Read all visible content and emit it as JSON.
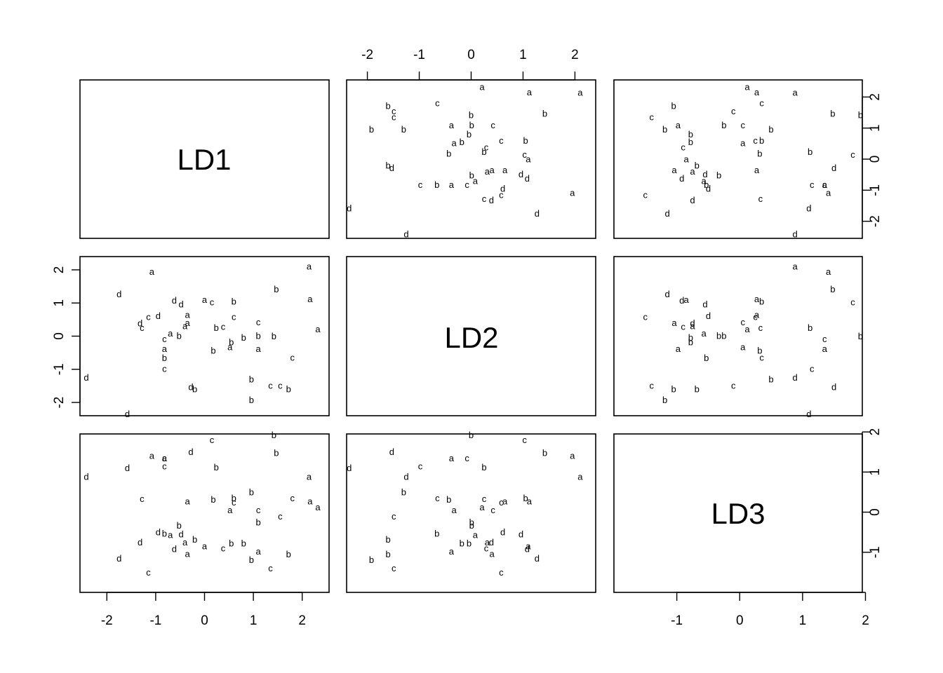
{
  "chart_data": {
    "type": "scatter",
    "plot_kind": "scatterplot matrix (pairs plot)",
    "variables": [
      "LD1",
      "LD2",
      "LD3"
    ],
    "point_labels": [
      "a",
      "b",
      "c",
      "d"
    ],
    "axes": {
      "LD1": {
        "range": [
          -2.55,
          2.55
        ],
        "ticks": [
          -2,
          -1,
          0,
          1,
          2
        ],
        "tick_labels": [
          "-2",
          "-1",
          "0",
          "1",
          "2"
        ]
      },
      "LD2": {
        "range": [
          -2.4,
          2.4
        ],
        "ticks": [
          -2,
          -1,
          0,
          1,
          2
        ],
        "tick_labels": [
          "-2",
          "-1",
          "0",
          "1",
          "2"
        ]
      },
      "LD3": {
        "range": [
          -2.0,
          1.95
        ],
        "ticks": [
          -1,
          0,
          1,
          2
        ],
        "tick_labels": [
          "-1",
          "0",
          "1",
          "2"
        ]
      }
    },
    "grid": false,
    "legend": "none",
    "points": [
      {
        "label": "a",
        "LD1": 2.32,
        "LD2": 0.21,
        "LD3": 0.12
      },
      {
        "label": "a",
        "LD1": 2.14,
        "LD2": 2.1,
        "LD3": 0.88
      },
      {
        "label": "a",
        "LD1": 2.16,
        "LD2": 1.12,
        "LD3": 0.27
      },
      {
        "label": "a",
        "LD1": -1.08,
        "LD2": 1.95,
        "LD3": 1.41
      },
      {
        "label": "a",
        "LD1": -0.82,
        "LD2": -0.38,
        "LD3": 1.35
      },
      {
        "label": "a",
        "LD1": -0.7,
        "LD2": 0.08,
        "LD3": -0.57
      },
      {
        "label": "a",
        "LD1": -0.4,
        "LD2": 0.31,
        "LD3": -0.75
      },
      {
        "label": "a",
        "LD1": -0.35,
        "LD2": 0.65,
        "LD3": 0.27
      },
      {
        "label": "a",
        "LD1": -0.35,
        "LD2": 0.4,
        "LD3": -1.04
      },
      {
        "label": "a",
        "LD1": 0.0,
        "LD2": 1.1,
        "LD3": -0.85
      },
      {
        "label": "a",
        "LD1": 0.52,
        "LD2": -0.33,
        "LD3": 0.05
      },
      {
        "label": "a",
        "LD1": 1.1,
        "LD2": -0.38,
        "LD3": -0.98
      },
      {
        "label": "b",
        "LD1": -0.82,
        "LD2": -0.66,
        "LD3": -0.53
      },
      {
        "label": "b",
        "LD1": -0.52,
        "LD2": 0.01,
        "LD3": -0.33
      },
      {
        "label": "b",
        "LD1": -0.2,
        "LD2": -1.6,
        "LD3": -0.68
      },
      {
        "label": "b",
        "LD1": 0.18,
        "LD2": -0.43,
        "LD3": 0.32
      },
      {
        "label": "b",
        "LD1": 0.24,
        "LD2": 0.25,
        "LD3": 1.12
      },
      {
        "label": "b",
        "LD1": 0.6,
        "LD2": 1.05,
        "LD3": 0.35
      },
      {
        "label": "b",
        "LD1": 0.8,
        "LD2": -0.04,
        "LD3": -0.78
      },
      {
        "label": "b",
        "LD1": 0.96,
        "LD2": -1.3,
        "LD3": 0.5
      },
      {
        "label": "b",
        "LD1": 0.96,
        "LD2": -1.92,
        "LD3": -1.19
      },
      {
        "label": "b",
        "LD1": 1.1,
        "LD2": 0.01,
        "LD3": -0.25
      },
      {
        "label": "b",
        "LD1": 1.42,
        "LD2": 0.0,
        "LD3": 1.92
      },
      {
        "label": "b",
        "LD1": 1.47,
        "LD2": 1.42,
        "LD3": 1.48
      },
      {
        "label": "b",
        "LD1": 1.72,
        "LD2": -1.6,
        "LD3": -1.05
      },
      {
        "label": "b",
        "LD1": 0.55,
        "LD2": -0.18,
        "LD3": -0.78
      },
      {
        "label": "c",
        "LD1": -1.28,
        "LD2": 0.25,
        "LD3": 0.33
      },
      {
        "label": "c",
        "LD1": -1.15,
        "LD2": 0.58,
        "LD3": -1.5
      },
      {
        "label": "c",
        "LD1": -0.82,
        "LD2": -0.98,
        "LD3": 1.15
      },
      {
        "label": "c",
        "LD1": -0.82,
        "LD2": -0.08,
        "LD3": 1.35
      },
      {
        "label": "c",
        "LD1": 0.15,
        "LD2": 1.03,
        "LD3": 1.8
      },
      {
        "label": "c",
        "LD1": 0.38,
        "LD2": 0.29,
        "LD3": -0.9
      },
      {
        "label": "c",
        "LD1": 0.6,
        "LD2": 0.58,
        "LD3": 0.25
      },
      {
        "label": "c",
        "LD1": 1.1,
        "LD2": 0.42,
        "LD3": 0.05
      },
      {
        "label": "c",
        "LD1": 1.35,
        "LD2": -1.49,
        "LD3": -1.4
      },
      {
        "label": "c",
        "LD1": 1.55,
        "LD2": -1.49,
        "LD3": -0.1
      },
      {
        "label": "c",
        "LD1": 1.8,
        "LD2": -0.65,
        "LD3": 0.35
      },
      {
        "label": "d",
        "LD1": -2.42,
        "LD2": -1.25,
        "LD3": 0.88
      },
      {
        "label": "d",
        "LD1": -1.75,
        "LD2": 1.27,
        "LD3": -1.15
      },
      {
        "label": "d",
        "LD1": -1.58,
        "LD2": -2.35,
        "LD3": 1.1
      },
      {
        "label": "d",
        "LD1": -1.32,
        "LD2": 0.39,
        "LD3": -0.75
      },
      {
        "label": "d",
        "LD1": -0.95,
        "LD2": 0.61,
        "LD3": -0.5
      },
      {
        "label": "d",
        "LD1": -0.62,
        "LD2": 1.08,
        "LD3": -0.92
      },
      {
        "label": "d",
        "LD1": -0.48,
        "LD2": 0.96,
        "LD3": -0.55
      },
      {
        "label": "d",
        "LD1": -0.28,
        "LD2": -1.53,
        "LD3": 1.5
      }
    ]
  },
  "panels": {
    "diag": [
      {
        "var": "LD1",
        "text": "LD1"
      },
      {
        "var": "LD2",
        "text": "LD2"
      },
      {
        "var": "LD3",
        "text": "LD3"
      }
    ]
  }
}
